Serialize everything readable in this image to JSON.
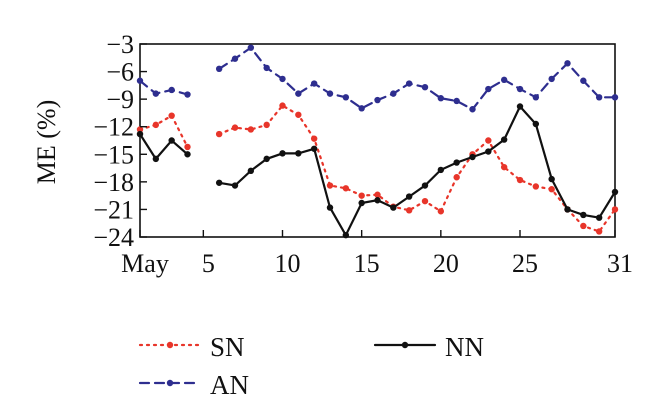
{
  "chart_data": {
    "type": "line",
    "title": "",
    "xlabel": "",
    "ylabel": "ME (%)",
    "xlim": [
      1,
      31
    ],
    "ylim": [
      -24,
      -3
    ],
    "x_ticks": [
      1,
      5,
      10,
      15,
      20,
      25,
      31
    ],
    "x_tick_labels": [
      "May",
      "5",
      "10",
      "15",
      "20",
      "25",
      "31"
    ],
    "y_ticks": [
      -3,
      -6,
      -9,
      -12,
      -15,
      -18,
      -21,
      -24
    ],
    "grid": false,
    "legend_position": "bottom",
    "series": [
      {
        "name": "SN",
        "color": "#e8352a",
        "style": "dotted",
        "points": [
          [
            1,
            -12.3
          ],
          [
            2,
            -11.8
          ],
          [
            3,
            -10.8
          ],
          [
            4,
            -14.2
          ],
          [
            6,
            -12.8
          ],
          [
            7,
            -12.1
          ],
          [
            8,
            -12.3
          ],
          [
            9,
            -11.8
          ],
          [
            10,
            -9.7
          ],
          [
            11,
            -10.7
          ],
          [
            12,
            -13.3
          ],
          [
            13,
            -18.4
          ],
          [
            14,
            -18.7
          ],
          [
            15,
            -19.5
          ],
          [
            16,
            -19.4
          ],
          [
            17,
            -20.7
          ],
          [
            18,
            -21.1
          ],
          [
            19,
            -20.1
          ],
          [
            20,
            -21.2
          ],
          [
            21,
            -17.5
          ],
          [
            22,
            -15.0
          ],
          [
            23,
            -13.5
          ],
          [
            24,
            -16.4
          ],
          [
            25,
            -17.8
          ],
          [
            26,
            -18.5
          ],
          [
            27,
            -18.8
          ],
          [
            28,
            -21.0
          ],
          [
            29,
            -22.8
          ],
          [
            30,
            -23.4
          ],
          [
            31,
            -21.0
          ]
        ]
      },
      {
        "name": "AN",
        "color": "#2e2e8f",
        "style": "dashed",
        "points": [
          [
            1,
            -7.0
          ],
          [
            2,
            -8.4
          ],
          [
            3,
            -8.0
          ],
          [
            4,
            -8.5
          ],
          [
            6,
            -5.7
          ],
          [
            7,
            -4.6
          ],
          [
            8,
            -3.4
          ],
          [
            9,
            -5.6
          ],
          [
            10,
            -6.8
          ],
          [
            11,
            -8.4
          ],
          [
            12,
            -7.3
          ],
          [
            13,
            -8.4
          ],
          [
            14,
            -8.8
          ],
          [
            15,
            -10.0
          ],
          [
            16,
            -9.1
          ],
          [
            17,
            -8.4
          ],
          [
            18,
            -7.3
          ],
          [
            19,
            -7.7
          ],
          [
            20,
            -8.9
          ],
          [
            21,
            -9.2
          ],
          [
            22,
            -10.1
          ],
          [
            23,
            -7.9
          ],
          [
            24,
            -6.9
          ],
          [
            25,
            -7.9
          ],
          [
            26,
            -8.8
          ],
          [
            27,
            -6.8
          ],
          [
            28,
            -5.1
          ],
          [
            29,
            -7.0
          ],
          [
            30,
            -8.8
          ],
          [
            31,
            -8.8
          ]
        ]
      },
      {
        "name": "NN",
        "color": "#111111",
        "style": "solid",
        "points": [
          [
            1,
            -12.8
          ],
          [
            2,
            -15.5
          ],
          [
            3,
            -13.5
          ],
          [
            4,
            -15.0
          ],
          [
            6,
            -18.1
          ],
          [
            7,
            -18.4
          ],
          [
            8,
            -16.8
          ],
          [
            9,
            -15.5
          ],
          [
            10,
            -14.9
          ],
          [
            11,
            -14.9
          ],
          [
            12,
            -14.4
          ],
          [
            13,
            -20.8
          ],
          [
            14,
            -23.8
          ],
          [
            15,
            -20.3
          ],
          [
            16,
            -20.0
          ],
          [
            17,
            -20.8
          ],
          [
            18,
            -19.6
          ],
          [
            19,
            -18.4
          ],
          [
            20,
            -16.7
          ],
          [
            21,
            -15.9
          ],
          [
            22,
            -15.3
          ],
          [
            23,
            -14.7
          ],
          [
            24,
            -13.4
          ],
          [
            25,
            -9.8
          ],
          [
            26,
            -11.7
          ],
          [
            27,
            -17.7
          ],
          [
            28,
            -21.0
          ],
          [
            29,
            -21.6
          ],
          [
            30,
            -21.9
          ],
          [
            31,
            -19.1
          ]
        ]
      }
    ]
  }
}
